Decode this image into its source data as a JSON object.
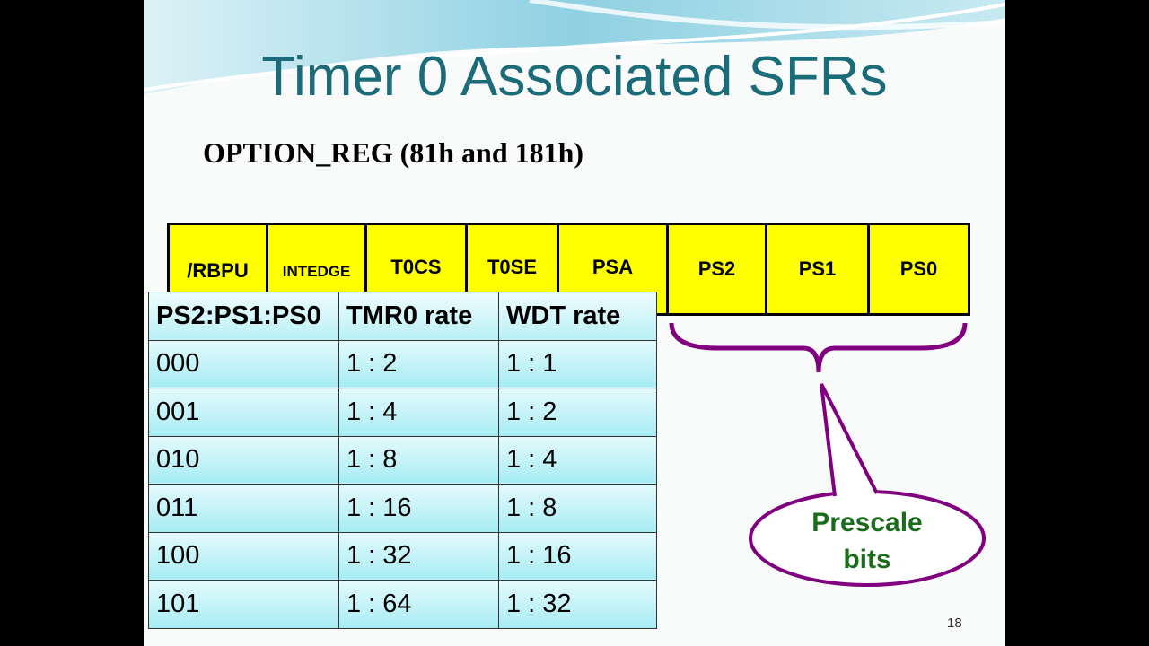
{
  "title": "Timer 0 Associated SFRs",
  "subtitle": "OPTION_REG (81h and 181h)",
  "register": {
    "bits": [
      "/RBPU",
      "INTEDGE",
      "T0CS",
      "T0SE",
      "PSA",
      "PS2",
      "PS1",
      "PS0"
    ]
  },
  "table": {
    "header": [
      "PS2:PS1:PS0",
      "TMR0 rate",
      "WDT rate"
    ],
    "rows": [
      [
        "000",
        "1 : 2",
        "1 : 1"
      ],
      [
        "001",
        "1 : 4",
        "1 : 2"
      ],
      [
        "010",
        "1 : 8",
        "1 : 4"
      ],
      [
        "011",
        "1 : 16",
        "1 : 8"
      ],
      [
        "100",
        "1 : 32",
        "1 : 16"
      ],
      [
        "101",
        "1 : 64",
        "1 : 32"
      ]
    ]
  },
  "callout": {
    "label": "Prescale bits"
  },
  "page_number": "18"
}
